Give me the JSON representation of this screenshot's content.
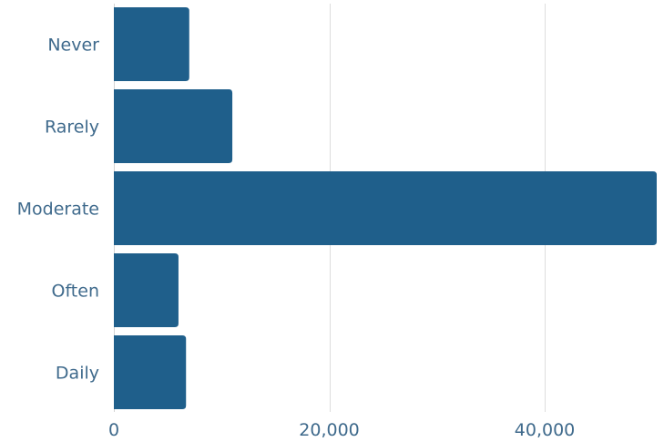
{
  "chart_data": {
    "type": "bar",
    "orientation": "horizontal",
    "categories": [
      "Never",
      "Rarely",
      "Moderate",
      "Often",
      "Daily"
    ],
    "values": [
      7000,
      11000,
      50400,
      6000,
      6700
    ],
    "xlim": [
      0,
      50400
    ],
    "x_ticks": [
      0,
      20000,
      40000
    ],
    "x_tick_labels": [
      "0",
      "20,000",
      "40,000"
    ],
    "grid": "vertical",
    "bar_color": "#1f5f8b",
    "label_color": "#3f6a8c"
  }
}
